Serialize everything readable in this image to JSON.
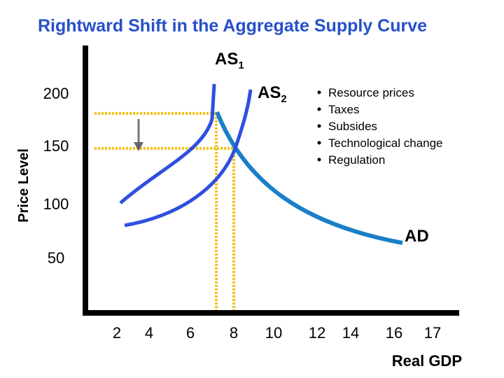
{
  "title": "Rightward Shift in the Aggregate Supply Curve",
  "y_axis": {
    "label": "Price Level",
    "ticks": [
      200,
      150,
      100,
      50
    ]
  },
  "x_axis": {
    "label": "Real GDP",
    "ticks": [
      2,
      4,
      6,
      8,
      10,
      12,
      14,
      16,
      17
    ]
  },
  "curves": [
    {
      "name": "AS",
      "sub": "1"
    },
    {
      "name": "AS",
      "sub": "2"
    },
    {
      "name": "AD"
    }
  ],
  "bullets": [
    "Resource prices",
    "Taxes",
    "Subsides",
    "Technological change",
    "Regulation"
  ]
}
